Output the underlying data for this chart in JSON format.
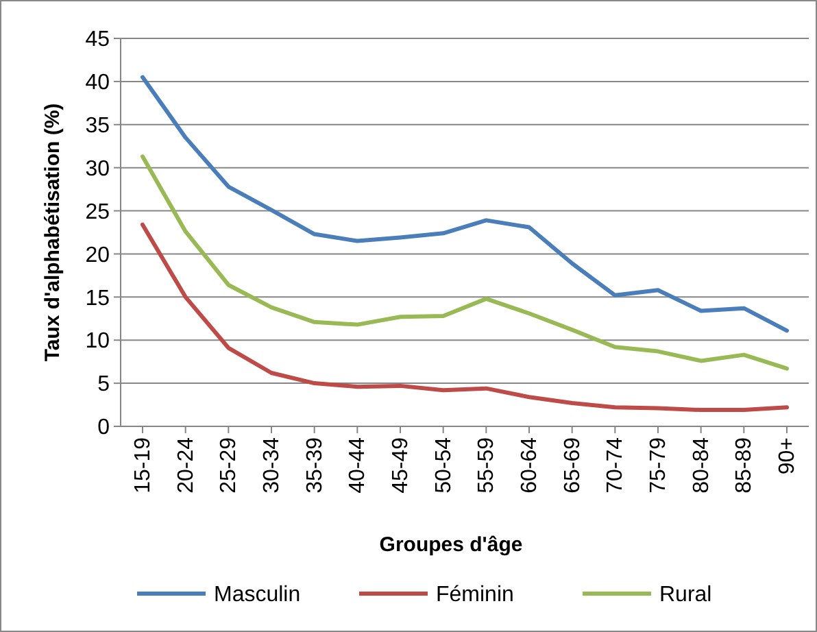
{
  "chart_data": {
    "type": "line",
    "xlabel": "Groupes d'âge",
    "ylabel": "Taux d'alphabétisation (%)",
    "categories": [
      "15-19",
      "20-24",
      "25-29",
      "30-34",
      "35-39",
      "40-44",
      "45-49",
      "50-54",
      "55-59",
      "60-64",
      "65-69",
      "70-74",
      "75-79",
      "80-84",
      "85-89",
      "90+"
    ],
    "series": [
      {
        "name": "Masculin",
        "color": "#4a7ebb",
        "values": [
          40.5,
          33.5,
          27.8,
          25.1,
          22.3,
          21.5,
          21.9,
          22.4,
          23.9,
          23.1,
          18.9,
          15.2,
          15.8,
          13.4,
          13.7,
          11.1
        ]
      },
      {
        "name": "Féminin",
        "color": "#be4b48",
        "values": [
          23.4,
          15.0,
          9.1,
          6.2,
          5.0,
          4.6,
          4.7,
          4.2,
          4.4,
          3.4,
          2.7,
          2.2,
          2.1,
          1.9,
          1.9,
          2.2
        ]
      },
      {
        "name": "Rural",
        "color": "#98b954",
        "values": [
          31.3,
          22.6,
          16.4,
          13.8,
          12.1,
          11.8,
          12.7,
          12.8,
          14.8,
          13.1,
          11.2,
          9.2,
          8.7,
          7.6,
          8.3,
          6.7
        ]
      }
    ],
    "ylim": [
      0,
      45
    ],
    "yticks": [
      0,
      5,
      10,
      15,
      20,
      25,
      30,
      35,
      40,
      45
    ],
    "grid": "y",
    "legend": "bottom",
    "marker": "none",
    "line_style": "solid"
  }
}
